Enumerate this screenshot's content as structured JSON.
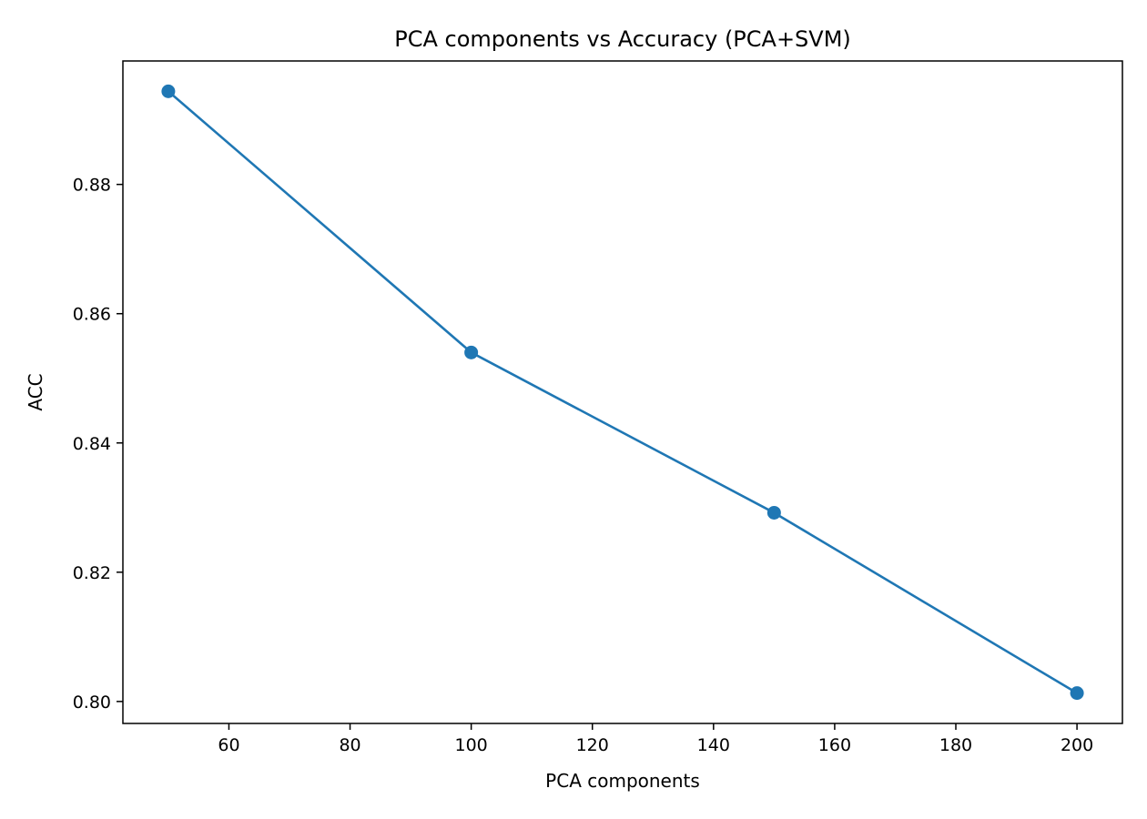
{
  "chart_data": {
    "type": "line",
    "title": "PCA components vs Accuracy (PCA+SVM)",
    "xlabel": "PCA components",
    "ylabel": "ACC",
    "x": [
      50,
      100,
      150,
      200
    ],
    "series": [
      {
        "values": [
          0.8944,
          0.854,
          0.8292,
          0.8013
        ],
        "color": "#1f77b4",
        "marker": "circle"
      }
    ],
    "xlim": [
      42.5,
      207.5
    ],
    "ylim": [
      0.7966,
      0.8991
    ],
    "xticks": [
      60,
      80,
      100,
      120,
      140,
      160,
      180,
      200
    ],
    "yticks": [
      0.8,
      0.82,
      0.84,
      0.86,
      0.88
    ],
    "xtick_labels": [
      "60",
      "80",
      "100",
      "120",
      "140",
      "160",
      "180",
      "200"
    ],
    "ytick_labels": [
      "0.80",
      "0.82",
      "0.84",
      "0.86",
      "0.88"
    ],
    "grid": false,
    "legend": "none"
  }
}
